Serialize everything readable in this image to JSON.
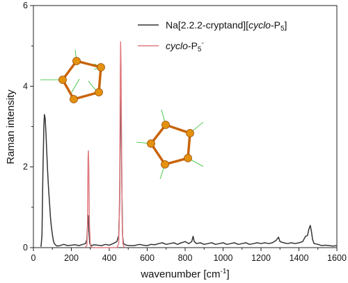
{
  "chart_data": {
    "type": "line",
    "xlabel_main": "wavenumber [cm",
    "xlabel_sup": "-1",
    "xlabel_end": "]",
    "ylabel": "Raman intensity",
    "xlim": [
      0,
      1600
    ],
    "ylim": [
      0,
      6
    ],
    "x_ticks": [
      0,
      200,
      400,
      600,
      800,
      1000,
      1200,
      1400,
      1600
    ],
    "y_ticks": [
      0,
      2,
      4,
      6
    ],
    "grid": false,
    "legend_position": "top-right",
    "legend": {
      "s1_a": "Na[2.2.2-cryptand][",
      "s1_b": "cyclo",
      "s1_c": "-P",
      "s1_sub": "5",
      "s1_d": "]",
      "s2_a": "cyclo",
      "s2_b": "-P",
      "s2_sub": "5",
      "s2_sup": "-"
    },
    "series": [
      {
        "color": "#333333",
        "points": [
          [
            40,
            0.02
          ],
          [
            45,
            0.3
          ],
          [
            50,
            1.8
          ],
          [
            55,
            3.0
          ],
          [
            58,
            3.3
          ],
          [
            62,
            3.2
          ],
          [
            66,
            2.85
          ],
          [
            70,
            2.4
          ],
          [
            75,
            1.9
          ],
          [
            80,
            1.45
          ],
          [
            85,
            1.1
          ],
          [
            90,
            0.75
          ],
          [
            95,
            0.5
          ],
          [
            100,
            0.32
          ],
          [
            105,
            0.18
          ],
          [
            110,
            0.1
          ],
          [
            118,
            0.06
          ],
          [
            125,
            0.04
          ],
          [
            140,
            0.05
          ],
          [
            160,
            0.08
          ],
          [
            180,
            0.05
          ],
          [
            200,
            0.06
          ],
          [
            220,
            0.07
          ],
          [
            240,
            0.05
          ],
          [
            260,
            0.08
          ],
          [
            275,
            0.1
          ],
          [
            282,
            0.2
          ],
          [
            286,
            0.6
          ],
          [
            288,
            0.8
          ],
          [
            290,
            0.75
          ],
          [
            293,
            0.4
          ],
          [
            297,
            0.1
          ],
          [
            305,
            0.05
          ],
          [
            320,
            0.07
          ],
          [
            340,
            0.06
          ],
          [
            360,
            0.05
          ],
          [
            380,
            0.08
          ],
          [
            400,
            0.06
          ],
          [
            420,
            0.1
          ],
          [
            440,
            0.15
          ],
          [
            450,
            0.3
          ],
          [
            455,
            1.2
          ],
          [
            458,
            3.0
          ],
          [
            460,
            3.7
          ],
          [
            463,
            3.2
          ],
          [
            466,
            1.6
          ],
          [
            470,
            0.3
          ],
          [
            475,
            0.1
          ],
          [
            490,
            0.06
          ],
          [
            510,
            0.05
          ],
          [
            530,
            0.05
          ],
          [
            560,
            0.08
          ],
          [
            580,
            0.06
          ],
          [
            600,
            0.05
          ],
          [
            620,
            0.08
          ],
          [
            640,
            0.07
          ],
          [
            660,
            0.1
          ],
          [
            680,
            0.12
          ],
          [
            700,
            0.08
          ],
          [
            720,
            0.1
          ],
          [
            740,
            0.12
          ],
          [
            760,
            0.08
          ],
          [
            780,
            0.12
          ],
          [
            800,
            0.15
          ],
          [
            820,
            0.1
          ],
          [
            835,
            0.15
          ],
          [
            842,
            0.28
          ],
          [
            848,
            0.15
          ],
          [
            860,
            0.1
          ],
          [
            880,
            0.12
          ],
          [
            900,
            0.08
          ],
          [
            920,
            0.1
          ],
          [
            940,
            0.12
          ],
          [
            960,
            0.08
          ],
          [
            980,
            0.1
          ],
          [
            1000,
            0.12
          ],
          [
            1020,
            0.08
          ],
          [
            1040,
            0.1
          ],
          [
            1060,
            0.12
          ],
          [
            1080,
            0.08
          ],
          [
            1100,
            0.1
          ],
          [
            1120,
            0.12
          ],
          [
            1140,
            0.08
          ],
          [
            1160,
            0.1
          ],
          [
            1180,
            0.12
          ],
          [
            1200,
            0.1
          ],
          [
            1220,
            0.12
          ],
          [
            1240,
            0.1
          ],
          [
            1260,
            0.12
          ],
          [
            1280,
            0.18
          ],
          [
            1292,
            0.26
          ],
          [
            1300,
            0.15
          ],
          [
            1320,
            0.12
          ],
          [
            1340,
            0.1
          ],
          [
            1360,
            0.12
          ],
          [
            1380,
            0.1
          ],
          [
            1400,
            0.12
          ],
          [
            1420,
            0.15
          ],
          [
            1435,
            0.28
          ],
          [
            1445,
            0.3
          ],
          [
            1452,
            0.45
          ],
          [
            1460,
            0.55
          ],
          [
            1466,
            0.4
          ],
          [
            1472,
            0.2
          ],
          [
            1480,
            0.1
          ],
          [
            1500,
            0.08
          ],
          [
            1520,
            0.05
          ],
          [
            1540,
            0.06
          ],
          [
            1560,
            0.05
          ],
          [
            1580,
            0.04
          ],
          [
            1600,
            0.05
          ]
        ]
      },
      {
        "color": "#e07a80",
        "points": [
          [
            270,
            0.0
          ],
          [
            282,
            0.05
          ],
          [
            285,
            0.5
          ],
          [
            288,
            2.2
          ],
          [
            290,
            2.4
          ],
          [
            292,
            2.0
          ],
          [
            295,
            0.6
          ],
          [
            300,
            0.05
          ],
          [
            310,
            0.0
          ],
          [
            440,
            0.0
          ],
          [
            450,
            0.1
          ],
          [
            455,
            1.5
          ],
          [
            458,
            4.2
          ],
          [
            460,
            5.1
          ],
          [
            462,
            4.5
          ],
          [
            465,
            2.5
          ],
          [
            468,
            0.7
          ],
          [
            472,
            0.1
          ],
          [
            480,
            0.0
          ]
        ]
      }
    ]
  }
}
